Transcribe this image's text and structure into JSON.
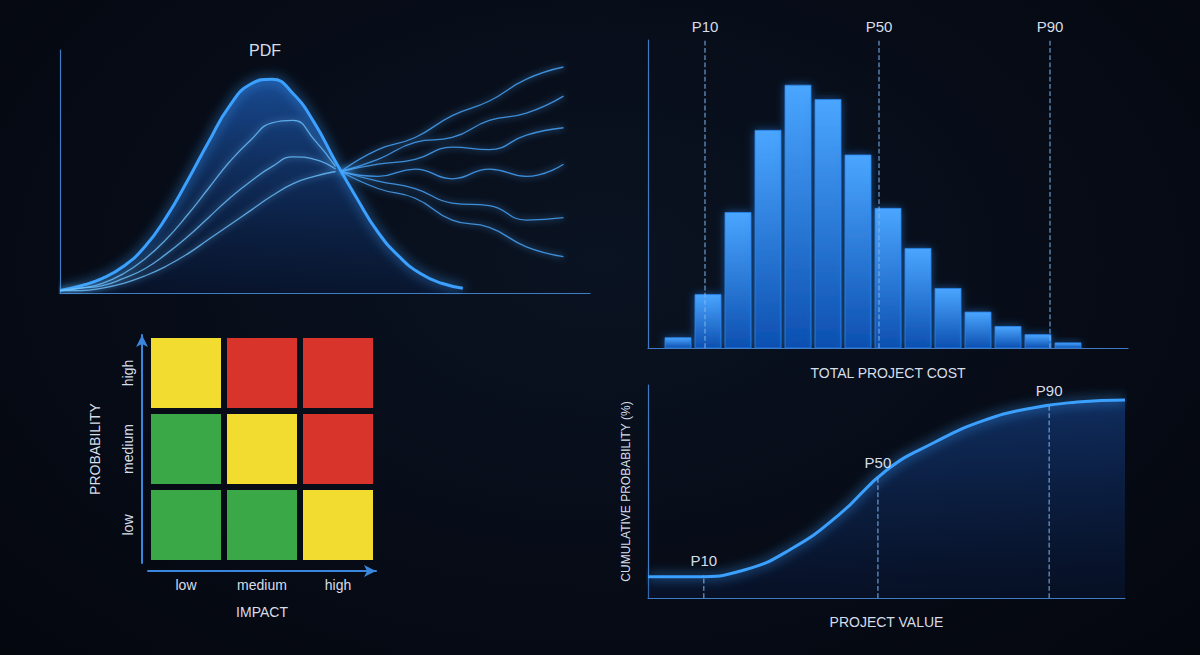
{
  "chart_data": [
    {
      "type": "line",
      "title": "PDF",
      "xlim": [
        0,
        100
      ],
      "ylim": [
        0,
        100
      ],
      "tick_labels": false,
      "grid": false,
      "series": [
        {
          "type": "area",
          "color": "#3aa0ff",
          "x": [
            0,
            4,
            8,
            12,
            16,
            20,
            24,
            28,
            32,
            36,
            40,
            44,
            48,
            52,
            56,
            60,
            64,
            68,
            72,
            76
          ],
          "values": [
            1,
            3,
            6,
            11,
            19,
            31,
            46,
            62,
            77,
            86,
            88,
            82,
            70,
            54,
            39,
            25,
            15,
            8,
            4,
            2
          ]
        },
        {
          "type": "line",
          "color": "#6cc0ff",
          "x": [
            0,
            4,
            8,
            12,
            16,
            20,
            24,
            28,
            32,
            36,
            40,
            44,
            48,
            52
          ],
          "values": [
            1,
            2,
            4,
            8,
            14,
            22,
            32,
            43,
            54,
            63,
            70,
            71,
            63,
            52
          ]
        },
        {
          "type": "line",
          "color": "#6cc0ff",
          "x": [
            0,
            4,
            8,
            12,
            16,
            20,
            24,
            28,
            32,
            36,
            40,
            44,
            48,
            52
          ],
          "values": [
            1,
            2,
            3,
            6,
            10,
            16,
            23,
            31,
            39,
            46,
            52,
            56,
            55,
            51
          ]
        },
        {
          "type": "line",
          "color": "#6cc0ff",
          "x": [
            0,
            4,
            8,
            12,
            16,
            20,
            24,
            28,
            32,
            36,
            40,
            44,
            48,
            52
          ],
          "values": [
            1,
            1,
            2,
            4,
            7,
            11,
            16,
            22,
            28,
            34,
            40,
            45,
            48,
            50
          ]
        },
        {
          "type": "line",
          "color": "#4aa8ff",
          "x": [
            53,
            60,
            67,
            74,
            81,
            88,
            95
          ],
          "values": [
            50,
            59,
            64,
            73,
            79,
            88,
            93
          ]
        },
        {
          "type": "line",
          "color": "#4aa8ff",
          "x": [
            53,
            60,
            67,
            74,
            81,
            88,
            95
          ],
          "values": [
            50,
            55,
            62,
            64,
            71,
            74,
            81
          ]
        },
        {
          "type": "line",
          "color": "#4aa8ff",
          "x": [
            53,
            60,
            67,
            74,
            81,
            88,
            95
          ],
          "values": [
            50,
            53,
            55,
            60,
            59,
            65,
            68
          ]
        },
        {
          "type": "line",
          "color": "#4aa8ff",
          "x": [
            53,
            60,
            67,
            74,
            81,
            88,
            95
          ],
          "values": [
            50,
            48,
            51,
            47,
            51,
            48,
            53
          ]
        },
        {
          "type": "line",
          "color": "#4aa8ff",
          "x": [
            53,
            60,
            67,
            74,
            81,
            88,
            95
          ],
          "values": [
            50,
            46,
            43,
            37,
            36,
            30,
            31
          ]
        },
        {
          "type": "line",
          "color": "#4aa8ff",
          "x": [
            53,
            60,
            67,
            74,
            81,
            88,
            95
          ],
          "values": [
            50,
            43,
            39,
            30,
            27,
            19,
            15
          ]
        }
      ]
    },
    {
      "type": "histogram",
      "xlabel": "TOTAL PROJECT COST",
      "color": "#2a86f0",
      "bins": [
        0.5,
        1.5,
        2.5,
        3.5,
        4.5,
        5.5,
        6.5,
        7.5,
        8.5,
        9.5,
        10.5,
        11.5,
        12.5,
        13.5,
        14.5
      ],
      "counts": [
        10,
        52,
        132,
        212,
        256,
        242,
        188,
        136,
        97,
        58,
        35,
        21,
        13,
        5
      ],
      "xlim": [
        0,
        16
      ],
      "ylim": [
        0,
        300
      ],
      "tick_labels": false,
      "grid": false,
      "annotations": [
        {
          "text": "P10",
          "x": 1.9
        },
        {
          "text": "P50",
          "x": 7.7
        },
        {
          "text": "P90",
          "x": 13.4
        }
      ]
    },
    {
      "type": "heatmap",
      "xlabel": "IMPACT",
      "ylabel": "PROBABILITY",
      "x_categories": [
        "low",
        "medium",
        "high"
      ],
      "y_categories": [
        "low",
        "medium",
        "high"
      ],
      "colors": [
        [
          "#3aa847",
          "#3aa847",
          "#f2dc30"
        ],
        [
          "#3aa847",
          "#f2dc30",
          "#d9342b"
        ],
        [
          "#f2dc30",
          "#d9342b",
          "#d9342b"
        ]
      ]
    },
    {
      "type": "area",
      "xlabel": "PROJECT VALUE",
      "ylabel": "CUMULATIVE PROBABILITY (%)",
      "color": "#3aa0ff",
      "x": [
        0,
        10,
        20,
        30,
        40,
        50,
        60,
        70,
        80,
        90,
        100
      ],
      "values": [
        10,
        10,
        13,
        23,
        39,
        60,
        73,
        83,
        89,
        92,
        93
      ],
      "xlim": [
        0,
        100
      ],
      "ylim": [
        0,
        100
      ],
      "tick_labels": false,
      "grid": false,
      "annotations": [
        {
          "text": "P10",
          "x": 11.7
        },
        {
          "text": "P50",
          "x": 48.2
        },
        {
          "text": "P90",
          "x": 84.1
        }
      ]
    }
  ]
}
